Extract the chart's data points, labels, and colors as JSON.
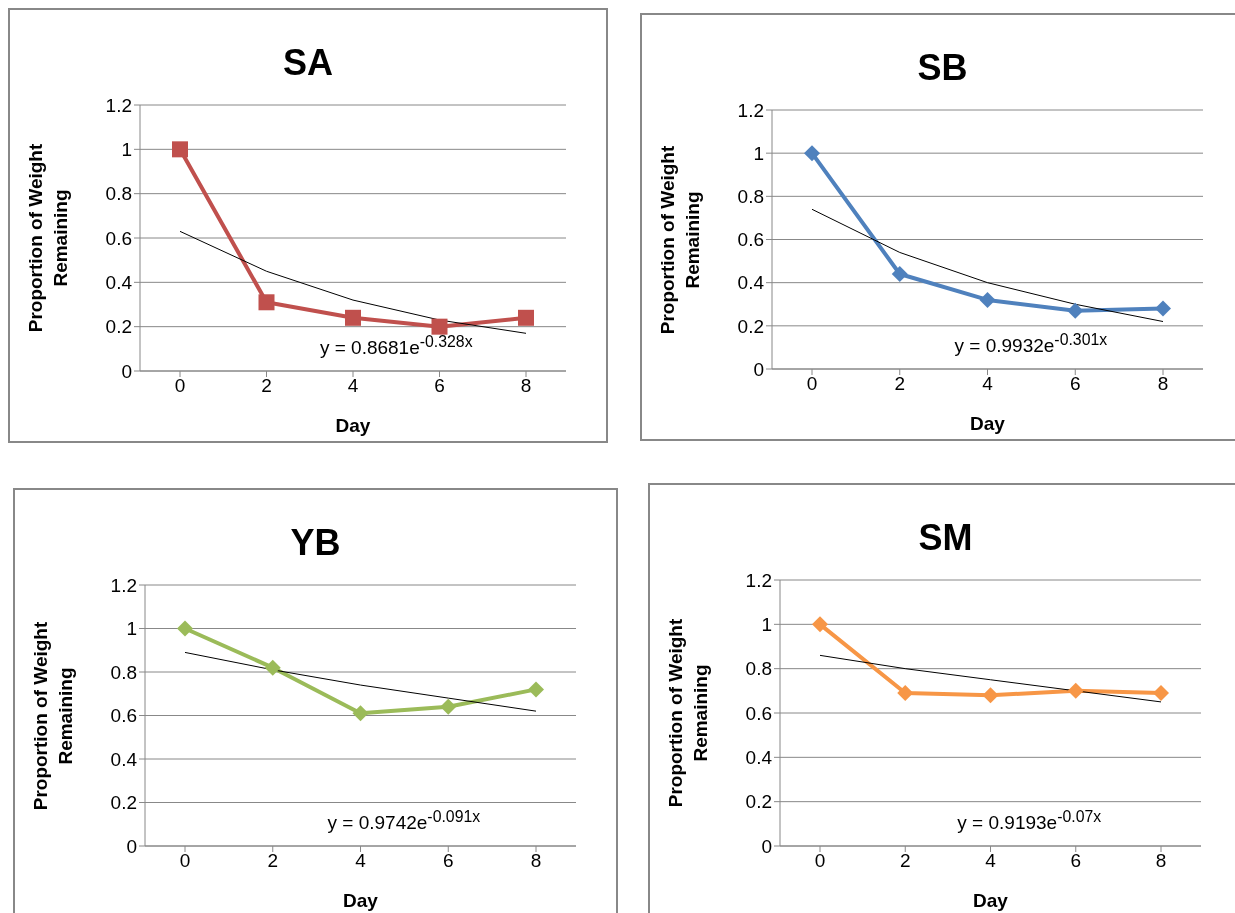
{
  "chart_data": [
    {
      "type": "line",
      "title": "SA",
      "xlabel": "Day",
      "ylabel": "Proportion of Weight Remaining",
      "categories": [
        "0",
        "2",
        "4",
        "6",
        "8"
      ],
      "ylim": [
        0,
        1.2
      ],
      "yticks": [
        0,
        0.2,
        0.4,
        0.6,
        0.8,
        1,
        1.2
      ],
      "grid": "y",
      "line_style": "solid",
      "series": [
        {
          "color": "#c0504d",
          "marker": "square",
          "values": [
            1,
            0.31,
            0.24,
            0.2,
            0.24
          ]
        },
        {
          "color": "#000000",
          "marker": "none",
          "values": [
            0.63,
            0.45,
            0.32,
            0.23,
            0.17
          ]
        }
      ],
      "annotations": [
        "y = 0.8681e$^{-0.328x}$"
      ]
    },
    {
      "type": "line",
      "title": "SB",
      "xlabel": "Day",
      "ylabel": "Proportion of Weight Remaining",
      "categories": [
        "0",
        "2",
        "4",
        "6",
        "8"
      ],
      "ylim": [
        0,
        1.2
      ],
      "yticks": [
        0,
        0.2,
        0.4,
        0.6,
        0.8,
        1,
        1.2
      ],
      "grid": "y",
      "line_style": "solid",
      "series": [
        {
          "color": "#4f81bd",
          "marker": "diamond",
          "values": [
            1,
            0.44,
            0.32,
            0.27,
            0.28
          ]
        },
        {
          "color": "#000000",
          "marker": "none",
          "values": [
            0.74,
            0.54,
            0.4,
            0.3,
            0.22
          ]
        }
      ],
      "annotations": [
        "y = 0.9932e$^{-0.301x}$"
      ]
    },
    {
      "type": "line",
      "title": "YB",
      "xlabel": "Day",
      "ylabel": "Proportion of Weight Remaining",
      "categories": [
        "0",
        "2",
        "4",
        "6",
        "8"
      ],
      "ylim": [
        0,
        1.2
      ],
      "yticks": [
        0,
        0.2,
        0.4,
        0.6,
        0.8,
        1,
        1.2
      ],
      "grid": "y",
      "line_style": "solid",
      "series": [
        {
          "color": "#9bbb59",
          "marker": "diamond",
          "values": [
            1,
            0.82,
            0.61,
            0.64,
            0.72
          ]
        },
        {
          "color": "#000000",
          "marker": "none",
          "values": [
            0.89,
            0.81,
            0.74,
            0.68,
            0.62
          ]
        }
      ],
      "annotations": [
        "y = 0.9742e$^{-0.091x}$"
      ]
    },
    {
      "type": "line",
      "title": "SM",
      "xlabel": "Day",
      "ylabel": "Proportion of Weight Remaining",
      "categories": [
        "0",
        "2",
        "4",
        "6",
        "8"
      ],
      "ylim": [
        0,
        1.2
      ],
      "yticks": [
        0,
        0.2,
        0.4,
        0.6,
        0.8,
        1,
        1.2
      ],
      "grid": "y",
      "line_style": "solid",
      "series": [
        {
          "color": "#f79646",
          "marker": "diamond",
          "values": [
            1,
            0.69,
            0.68,
            0.7,
            0.69
          ]
        },
        {
          "color": "#000000",
          "marker": "none",
          "values": [
            0.86,
            0.8,
            0.75,
            0.7,
            0.65
          ]
        }
      ],
      "annotations": [
        "y = 0.9193e$^{-0.07x}$"
      ]
    }
  ]
}
